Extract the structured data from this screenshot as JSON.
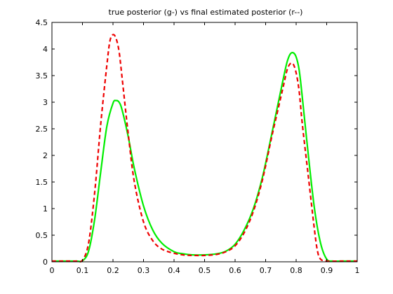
{
  "chart_data": {
    "type": "line",
    "title": "true posterior (g-) vs final estimated posterior (r--)",
    "xlabel": "",
    "ylabel": "",
    "xlim": [
      0,
      1
    ],
    "ylim": [
      0,
      4.5
    ],
    "xticks": [
      "0",
      "0.1",
      "0.2",
      "0.3",
      "0.4",
      "0.5",
      "0.6",
      "0.7",
      "0.8",
      "0.9",
      "1"
    ],
    "yticks": [
      "0",
      "0.5",
      "1",
      "1.5",
      "2",
      "2.5",
      "3",
      "3.5",
      "4",
      "4.5"
    ],
    "grid": false,
    "legend": "none",
    "series": [
      {
        "color": "#00ee00",
        "dash": "solid",
        "x": [
          0,
          0.05,
          0.08,
          0.1,
          0.12,
          0.14,
          0.16,
          0.18,
          0.2,
          0.21,
          0.22,
          0.23,
          0.25,
          0.27,
          0.3,
          0.33,
          0.36,
          0.4,
          0.43,
          0.46,
          0.5,
          0.54,
          0.57,
          0.6,
          0.63,
          0.66,
          0.69,
          0.72,
          0.74,
          0.76,
          0.77,
          0.78,
          0.79,
          0.8,
          0.81,
          0.82,
          0.84,
          0.86,
          0.88,
          0.9,
          0.92,
          0.95,
          1
        ],
        "y": [
          0,
          0,
          0,
          0.02,
          0.2,
          0.8,
          1.7,
          2.55,
          2.98,
          3.03,
          3.0,
          2.85,
          2.35,
          1.75,
          1.05,
          0.6,
          0.35,
          0.19,
          0.15,
          0.13,
          0.13,
          0.15,
          0.2,
          0.33,
          0.6,
          1.0,
          1.6,
          2.4,
          2.95,
          3.5,
          3.75,
          3.9,
          3.93,
          3.85,
          3.6,
          3.1,
          2.0,
          1.0,
          0.35,
          0.05,
          0,
          0,
          0
        ]
      },
      {
        "color": "#ee0000",
        "dash": "dashed",
        "x": [
          0,
          0.05,
          0.08,
          0.1,
          0.12,
          0.14,
          0.16,
          0.18,
          0.19,
          0.2,
          0.21,
          0.22,
          0.23,
          0.25,
          0.27,
          0.3,
          0.33,
          0.36,
          0.4,
          0.43,
          0.46,
          0.5,
          0.54,
          0.57,
          0.6,
          0.63,
          0.66,
          0.69,
          0.72,
          0.74,
          0.76,
          0.77,
          0.78,
          0.79,
          0.8,
          0.81,
          0.82,
          0.84,
          0.86,
          0.87,
          0.88,
          0.9,
          0.95,
          1
        ],
        "y": [
          0,
          0,
          0,
          0.03,
          0.35,
          1.3,
          2.6,
          3.7,
          4.15,
          4.27,
          4.2,
          3.95,
          3.45,
          2.4,
          1.5,
          0.75,
          0.4,
          0.24,
          0.16,
          0.13,
          0.12,
          0.12,
          0.14,
          0.19,
          0.3,
          0.55,
          0.95,
          1.55,
          2.35,
          2.85,
          3.35,
          3.6,
          3.72,
          3.72,
          3.55,
          3.2,
          2.6,
          1.6,
          0.6,
          0.2,
          0.05,
          0,
          0,
          0
        ]
      }
    ]
  }
}
